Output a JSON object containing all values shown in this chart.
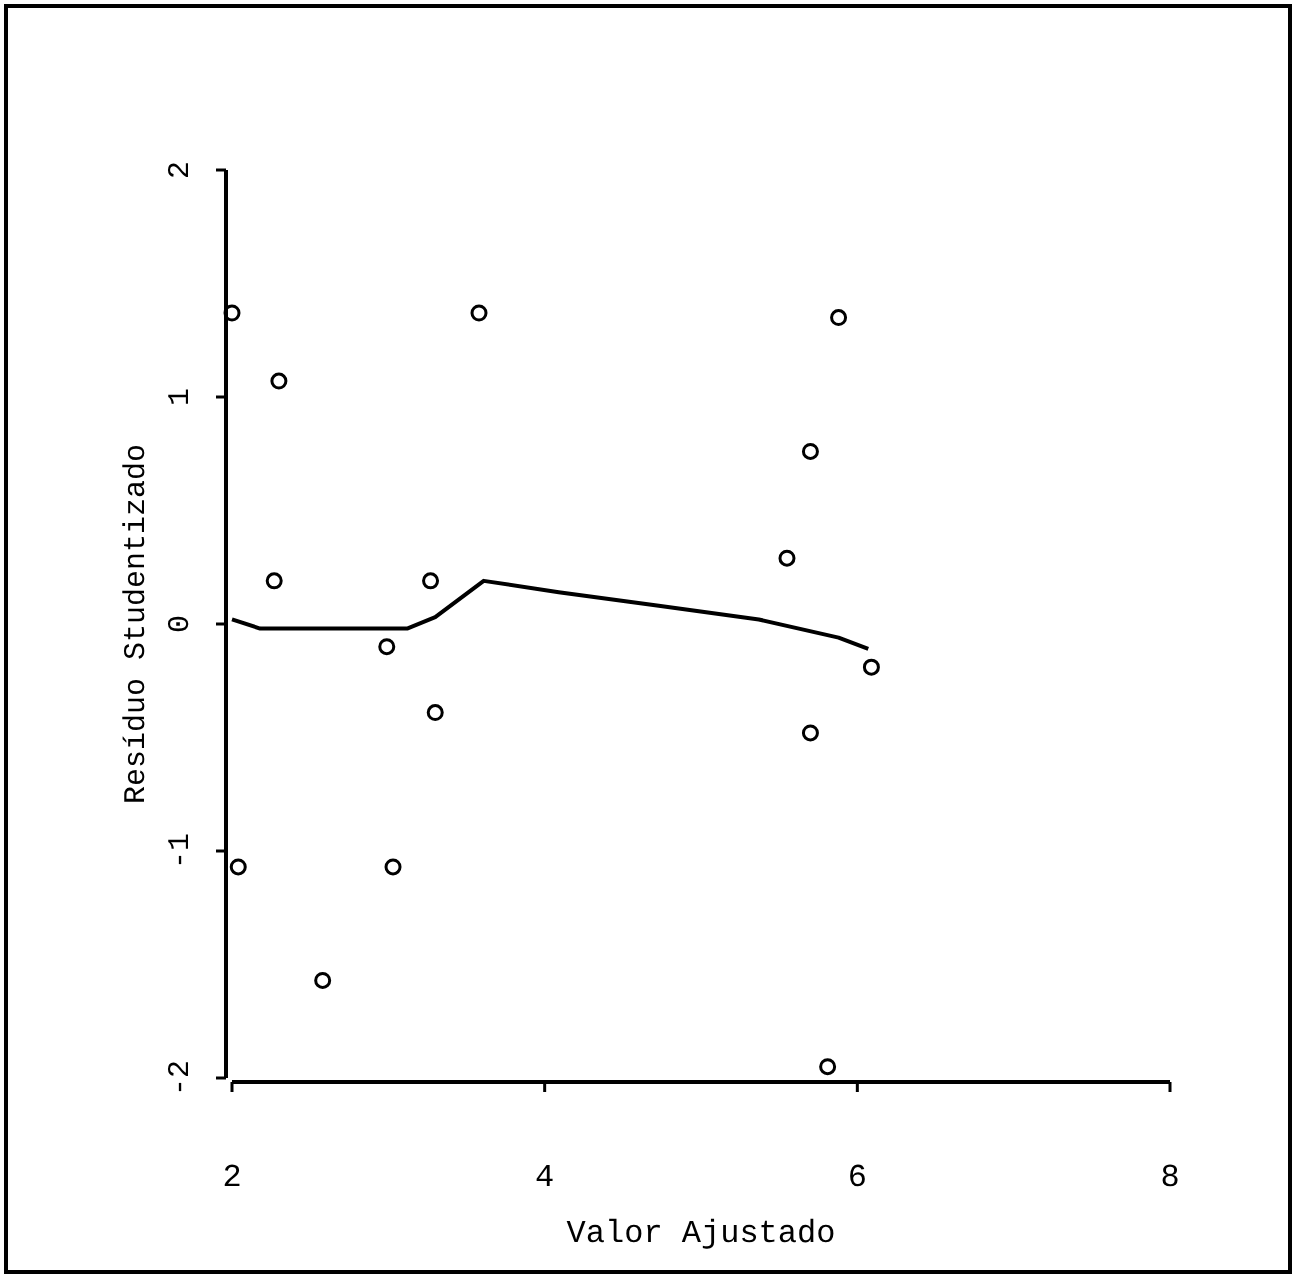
{
  "chart_data": {
    "type": "scatter",
    "xlabel": "Valor Ajustado",
    "ylabel": "Resíduo Studentizado",
    "xlim": [
      2,
      8
    ],
    "xticks": [
      2,
      4,
      6,
      8
    ],
    "ylim": [
      -2,
      2
    ],
    "yticks": [
      -2,
      -1,
      0,
      1,
      2
    ],
    "grid": false,
    "series": [
      {
        "marker": "circle",
        "color": "#000000",
        "x": [
          2.0,
          2.3,
          2.27,
          3.58,
          3.27,
          2.99,
          3.3,
          2.04,
          3.03,
          2.58,
          5.88,
          5.7,
          5.55,
          6.09,
          5.7,
          5.81
        ],
        "values": [
          1.37,
          1.07,
          0.19,
          1.37,
          0.19,
          -0.1,
          -0.39,
          -1.07,
          -1.07,
          -1.57,
          1.35,
          0.76,
          0.29,
          -0.19,
          -0.48,
          -1.95
        ]
      },
      {
        "type": "line",
        "marker": "none",
        "color": "#000000",
        "x": [
          2.0,
          2.18,
          3.12,
          3.3,
          3.61,
          4.09,
          4.73,
          5.37,
          5.88,
          6.07
        ],
        "values": [
          0.02,
          -0.02,
          -0.02,
          0.03,
          0.19,
          0.14,
          0.08,
          0.02,
          -0.06,
          -0.11
        ]
      }
    ]
  }
}
